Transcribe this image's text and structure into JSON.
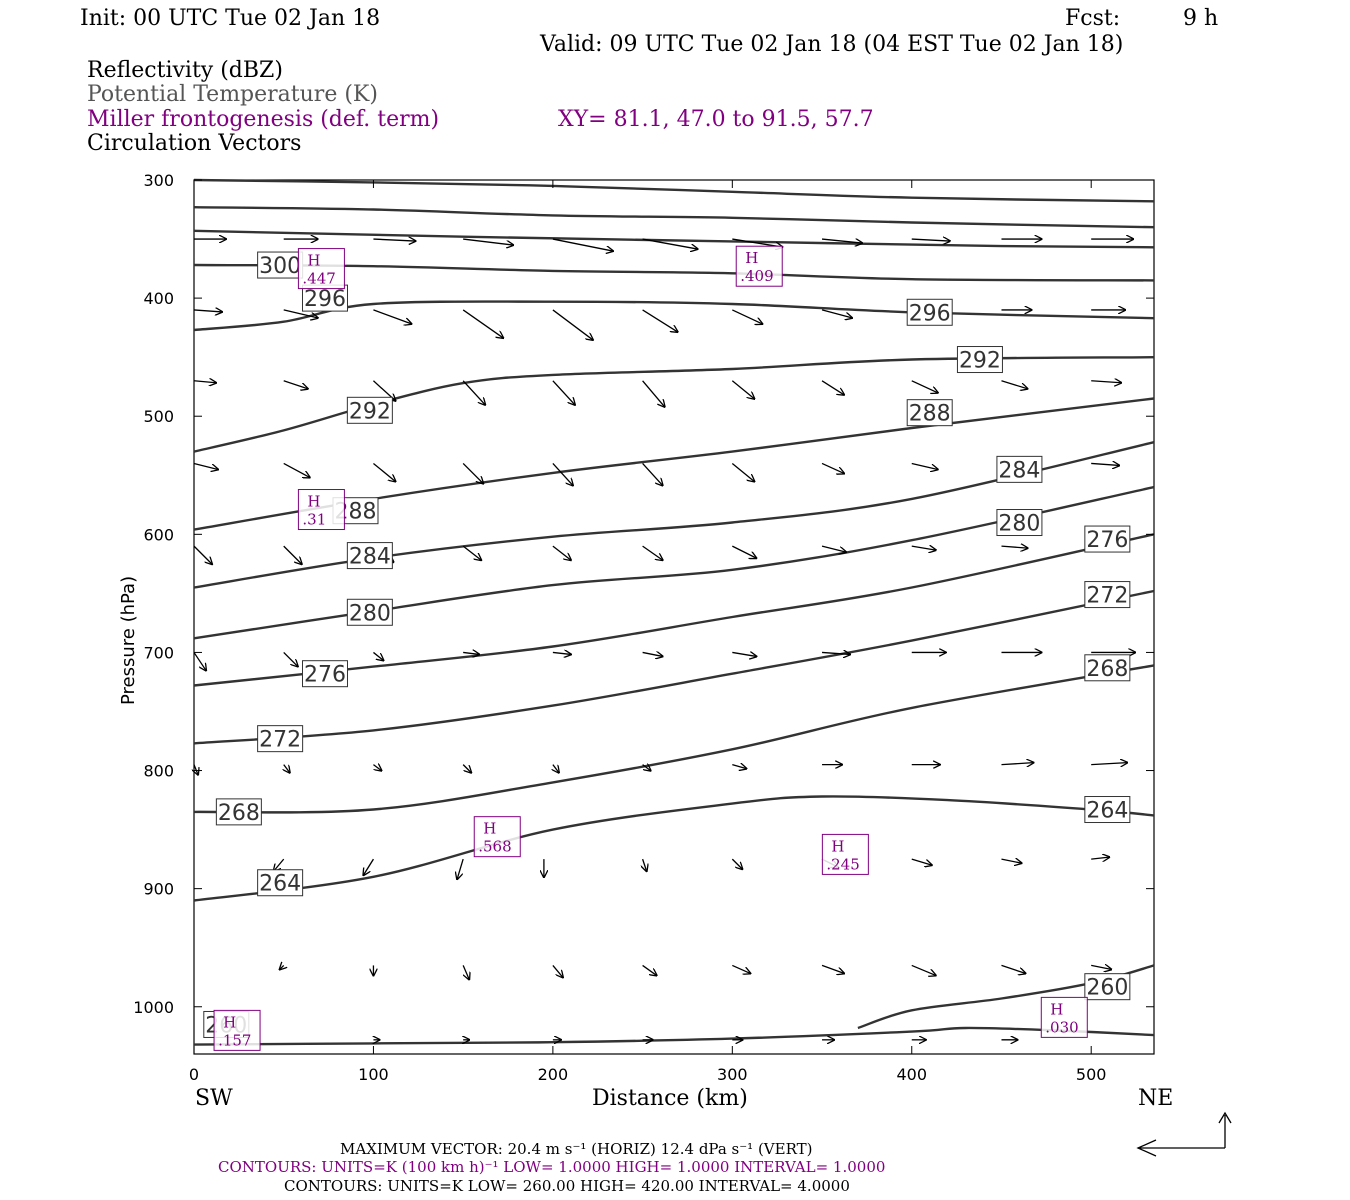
{
  "header": {
    "init": "Init: 00 UTC Tue 02 Jan 18",
    "fcst_label": "Fcst:",
    "fcst_value": "9 h",
    "valid": "Valid: 09 UTC Tue 02 Jan 18 (04 EST Tue 02 Jan 18)",
    "field1": "Reflectivity (dBZ)",
    "field2": "Potential Temperature (K)",
    "field3": "Miller frontogenesis (def. term)",
    "xy": "XY=  81.1, 47.0 to  91.5, 57.7",
    "field4": "Circulation Vectors"
  },
  "colors": {
    "purple": "#800080",
    "gray": "#555555",
    "contour": "#333333"
  },
  "footer": {
    "max_vector": "MAXIMUM VECTOR:  20.4 m s⁻¹ (HORIZ)          12.4 dPa s⁻¹ (VERT)",
    "contours_purple": "CONTOURS:  UNITS=K (100 km h)⁻¹  LOW=   1.0000       HIGH=   1.0000       INTERVAL=    1.0000",
    "contours_black": "CONTOURS:  UNITS=K  LOW=   260.00       HIGH=   420.00       INTERVAL=    4.0000"
  },
  "chart_data": {
    "type": "line",
    "xlabel": "Distance (km)",
    "ylabel": "Pressure (hPa)",
    "x_left_label": "SW",
    "x_right_label": "NE",
    "xlim": [
      0,
      535
    ],
    "ylim": [
      300,
      1040
    ],
    "x_ticks": [
      0,
      100,
      200,
      300,
      400,
      500
    ],
    "y_ticks": [
      300,
      400,
      500,
      600,
      700,
      800,
      900,
      1000
    ],
    "theta_contours": [
      {
        "label": "300",
        "points": [
          [
            0,
            300
          ],
          [
            100,
            302
          ],
          [
            200,
            305
          ],
          [
            300,
            310
          ],
          [
            400,
            315
          ],
          [
            535,
            318
          ]
        ],
        "label_at": [
          48,
          372
        ]
      },
      {
        "label": "",
        "points": [
          [
            0,
            323
          ],
          [
            100,
            325
          ],
          [
            200,
            330
          ],
          [
            300,
            332
          ],
          [
            400,
            336
          ],
          [
            535,
            340
          ]
        ]
      },
      {
        "label": "",
        "points": [
          [
            0,
            343
          ],
          [
            150,
            348
          ],
          [
            300,
            352
          ],
          [
            450,
            356
          ],
          [
            535,
            357
          ]
        ]
      },
      {
        "label": "",
        "points": [
          [
            0,
            372
          ],
          [
            100,
            373
          ],
          [
            200,
            377
          ],
          [
            300,
            379
          ],
          [
            400,
            384
          ],
          [
            535,
            385
          ]
        ]
      },
      {
        "label": "296",
        "points": [
          [
            0,
            427
          ],
          [
            50,
            420
          ],
          [
            100,
            405
          ],
          [
            200,
            403
          ],
          [
            300,
            405
          ],
          [
            400,
            412
          ],
          [
            535,
            417
          ]
        ],
        "label_at": [
          410,
          412
        ]
      },
      {
        "label": "292",
        "points": [
          [
            0,
            530
          ],
          [
            50,
            512
          ],
          [
            100,
            490
          ],
          [
            150,
            472
          ],
          [
            200,
            465
          ],
          [
            300,
            460
          ],
          [
            400,
            452
          ],
          [
            535,
            450
          ]
        ],
        "label_at": [
          98,
          495
        ]
      },
      {
        "label": "288",
        "points": [
          [
            0,
            596
          ],
          [
            100,
            570
          ],
          [
            200,
            548
          ],
          [
            300,
            530
          ],
          [
            400,
            510
          ],
          [
            535,
            485
          ]
        ],
        "label_at": [
          410,
          497
        ]
      },
      {
        "label": "284",
        "points": [
          [
            0,
            645
          ],
          [
            100,
            620
          ],
          [
            200,
            602
          ],
          [
            300,
            590
          ],
          [
            400,
            570
          ],
          [
            535,
            522
          ]
        ],
        "label_at": [
          98,
          618
        ]
      },
      {
        "label": "280",
        "points": [
          [
            0,
            688
          ],
          [
            100,
            665
          ],
          [
            200,
            643
          ],
          [
            300,
            630
          ],
          [
            400,
            605
          ],
          [
            535,
            560
          ]
        ],
        "label_at": [
          98,
          666
        ]
      },
      {
        "label": "276",
        "points": [
          [
            0,
            728
          ],
          [
            100,
            712
          ],
          [
            200,
            695
          ],
          [
            300,
            670
          ],
          [
            400,
            645
          ],
          [
            535,
            600
          ]
        ],
        "label_at": [
          73,
          718
        ]
      },
      {
        "label": "272",
        "points": [
          [
            0,
            777
          ],
          [
            100,
            766
          ],
          [
            200,
            745
          ],
          [
            300,
            718
          ],
          [
            400,
            690
          ],
          [
            535,
            648
          ]
        ],
        "label_at": [
          48,
          773
        ]
      },
      {
        "label": "268",
        "points": [
          [
            0,
            835
          ],
          [
            100,
            833
          ],
          [
            200,
            810
          ],
          [
            300,
            782
          ],
          [
            400,
            747
          ],
          [
            535,
            711
          ]
        ],
        "label_at": [
          25,
          835
        ]
      },
      {
        "label": "264",
        "points": [
          [
            0,
            910
          ],
          [
            100,
            890
          ],
          [
            200,
            850
          ],
          [
            300,
            828
          ],
          [
            350,
            822
          ],
          [
            420,
            825
          ],
          [
            500,
            833
          ],
          [
            535,
            838
          ]
        ],
        "label_at": [
          48,
          895
        ]
      },
      {
        "label": "260",
        "points": [
          [
            370,
            1018
          ],
          [
            400,
            1003
          ],
          [
            450,
            993
          ],
          [
            500,
            980
          ],
          [
            535,
            965
          ]
        ],
        "label_at": [
          509,
          983
        ]
      },
      {
        "label": "",
        "points": [
          [
            0,
            1032
          ],
          [
            100,
            1031
          ],
          [
            200,
            1030
          ],
          [
            300,
            1027
          ],
          [
            400,
            1021
          ],
          [
            430,
            1018
          ],
          [
            480,
            1020
          ],
          [
            535,
            1024
          ]
        ]
      }
    ],
    "theta_extra_labels": [
      {
        "label": "296",
        "at": [
          73,
          400
        ]
      },
      {
        "label": "292",
        "at": [
          438,
          452
        ]
      },
      {
        "label": "288",
        "at": [
          90,
          580
        ]
      },
      {
        "label": "284",
        "at": [
          460,
          545
        ]
      },
      {
        "label": "280",
        "at": [
          460,
          590
        ]
      },
      {
        "label": "276",
        "at": [
          509,
          604
        ]
      },
      {
        "label": "272",
        "at": [
          509,
          651
        ]
      },
      {
        "label": "268",
        "at": [
          509,
          713
        ]
      },
      {
        "label": "264",
        "at": [
          509,
          833
        ]
      },
      {
        "label": "260",
        "at": [
          18,
          1015
        ]
      }
    ],
    "frontogenesis_highs": [
      {
        "label": "H",
        "value": ".447",
        "at": [
          71,
          375
        ]
      },
      {
        "label": "H",
        "value": ".409",
        "at": [
          315,
          373
        ]
      },
      {
        "label": "H",
        "value": ".31",
        "at": [
          71,
          579
        ]
      },
      {
        "label": "H",
        "value": ".568",
        "at": [
          169,
          856
        ]
      },
      {
        "label": "H",
        "value": ".245",
        "at": [
          363,
          871
        ]
      },
      {
        "label": "H",
        "value": ".157",
        "at": [
          24,
          1020
        ]
      },
      {
        "label": "H",
        "value": ".030",
        "at": [
          485,
          1009
        ]
      }
    ],
    "vectors": [
      {
        "x": 0,
        "p": 350,
        "u": 32,
        "v": 0
      },
      {
        "x": 50,
        "p": 350,
        "u": 34,
        "v": 0
      },
      {
        "x": 100,
        "p": 350,
        "u": 42,
        "v": 2
      },
      {
        "x": 150,
        "p": 350,
        "u": 50,
        "v": 6
      },
      {
        "x": 200,
        "p": 350,
        "u": 60,
        "v": 12
      },
      {
        "x": 250,
        "p": 350,
        "u": 55,
        "v": 10
      },
      {
        "x": 300,
        "p": 350,
        "u": 50,
        "v": 8
      },
      {
        "x": 350,
        "p": 350,
        "u": 40,
        "v": 4
      },
      {
        "x": 400,
        "p": 350,
        "u": 38,
        "v": 2
      },
      {
        "x": 450,
        "p": 350,
        "u": 40,
        "v": 0
      },
      {
        "x": 500,
        "p": 350,
        "u": 42,
        "v": 0
      },
      {
        "x": 0,
        "p": 410,
        "u": 28,
        "v": 2
      },
      {
        "x": 50,
        "p": 410,
        "u": 34,
        "v": 8
      },
      {
        "x": 100,
        "p": 410,
        "u": 38,
        "v": 14
      },
      {
        "x": 150,
        "p": 410,
        "u": 40,
        "v": 28
      },
      {
        "x": 200,
        "p": 410,
        "u": 40,
        "v": 30
      },
      {
        "x": 250,
        "p": 410,
        "u": 35,
        "v": 22
      },
      {
        "x": 300,
        "p": 410,
        "u": 30,
        "v": 14
      },
      {
        "x": 350,
        "p": 410,
        "u": 30,
        "v": 8
      },
      {
        "x": 400,
        "p": 410,
        "u": 30,
        "v": 6
      },
      {
        "x": 450,
        "p": 410,
        "u": 30,
        "v": 0
      },
      {
        "x": 500,
        "p": 410,
        "u": 34,
        "v": 0
      },
      {
        "x": 0,
        "p": 470,
        "u": 22,
        "v": 2
      },
      {
        "x": 50,
        "p": 470,
        "u": 24,
        "v": 8
      },
      {
        "x": 100,
        "p": 470,
        "u": 22,
        "v": 20
      },
      {
        "x": 150,
        "p": 470,
        "u": 22,
        "v": 24
      },
      {
        "x": 200,
        "p": 470,
        "u": 22,
        "v": 24
      },
      {
        "x": 250,
        "p": 470,
        "u": 22,
        "v": 26
      },
      {
        "x": 300,
        "p": 470,
        "u": 22,
        "v": 18
      },
      {
        "x": 350,
        "p": 470,
        "u": 22,
        "v": 14
      },
      {
        "x": 400,
        "p": 470,
        "u": 26,
        "v": 12
      },
      {
        "x": 450,
        "p": 470,
        "u": 26,
        "v": 8
      },
      {
        "x": 500,
        "p": 470,
        "u": 30,
        "v": 2
      },
      {
        "x": 0,
        "p": 540,
        "u": 24,
        "v": 6
      },
      {
        "x": 50,
        "p": 540,
        "u": 26,
        "v": 14
      },
      {
        "x": 100,
        "p": 540,
        "u": 22,
        "v": 18
      },
      {
        "x": 150,
        "p": 540,
        "u": 20,
        "v": 20
      },
      {
        "x": 200,
        "p": 540,
        "u": 20,
        "v": 22
      },
      {
        "x": 250,
        "p": 540,
        "u": 20,
        "v": 22
      },
      {
        "x": 300,
        "p": 540,
        "u": 22,
        "v": 18
      },
      {
        "x": 350,
        "p": 540,
        "u": 22,
        "v": 10
      },
      {
        "x": 400,
        "p": 540,
        "u": 26,
        "v": 6
      },
      {
        "x": 450,
        "p": 540,
        "u": 26,
        "v": 2
      },
      {
        "x": 500,
        "p": 540,
        "u": 28,
        "v": 2
      },
      {
        "x": 0,
        "p": 610,
        "u": 18,
        "v": 18
      },
      {
        "x": 50,
        "p": 610,
        "u": 18,
        "v": 18
      },
      {
        "x": 100,
        "p": 610,
        "u": 20,
        "v": 16
      },
      {
        "x": 150,
        "p": 610,
        "u": 18,
        "v": 14
      },
      {
        "x": 200,
        "p": 610,
        "u": 18,
        "v": 14
      },
      {
        "x": 250,
        "p": 610,
        "u": 20,
        "v": 14
      },
      {
        "x": 300,
        "p": 610,
        "u": 24,
        "v": 12
      },
      {
        "x": 350,
        "p": 610,
        "u": 24,
        "v": 6
      },
      {
        "x": 400,
        "p": 610,
        "u": 24,
        "v": 4
      },
      {
        "x": 450,
        "p": 610,
        "u": 26,
        "v": 2
      },
      {
        "x": 500,
        "p": 610,
        "u": 28,
        "v": 0
      },
      {
        "x": 0,
        "p": 700,
        "u": 12,
        "v": 18
      },
      {
        "x": 50,
        "p": 700,
        "u": 14,
        "v": 14
      },
      {
        "x": 100,
        "p": 700,
        "u": 10,
        "v": 8
      },
      {
        "x": 150,
        "p": 700,
        "u": 16,
        "v": 2
      },
      {
        "x": 200,
        "p": 700,
        "u": 18,
        "v": 2
      },
      {
        "x": 250,
        "p": 700,
        "u": 20,
        "v": 4
      },
      {
        "x": 300,
        "p": 700,
        "u": 24,
        "v": 4
      },
      {
        "x": 350,
        "p": 700,
        "u": 28,
        "v": 2
      },
      {
        "x": 400,
        "p": 700,
        "u": 34,
        "v": 0
      },
      {
        "x": 450,
        "p": 700,
        "u": 40,
        "v": 0
      },
      {
        "x": 500,
        "p": 700,
        "u": 44,
        "v": 0
      },
      {
        "x": 0,
        "p": 795,
        "u": 4,
        "v": 10
      },
      {
        "x": 50,
        "p": 795,
        "u": 6,
        "v": 8
      },
      {
        "x": 100,
        "p": 795,
        "u": 8,
        "v": 6
      },
      {
        "x": 150,
        "p": 795,
        "u": 8,
        "v": 8
      },
      {
        "x": 200,
        "p": 795,
        "u": 6,
        "v": 8
      },
      {
        "x": 250,
        "p": 795,
        "u": 8,
        "v": 6
      },
      {
        "x": 300,
        "p": 795,
        "u": 14,
        "v": 4
      },
      {
        "x": 350,
        "p": 795,
        "u": 20,
        "v": 0
      },
      {
        "x": 400,
        "p": 795,
        "u": 28,
        "v": 0
      },
      {
        "x": 450,
        "p": 795,
        "u": 32,
        "v": -2
      },
      {
        "x": 500,
        "p": 795,
        "u": 36,
        "v": -2
      },
      {
        "x": 50,
        "p": 875,
        "u": -10,
        "v": 12
      },
      {
        "x": 100,
        "p": 875,
        "u": -10,
        "v": 16
      },
      {
        "x": 150,
        "p": 875,
        "u": -6,
        "v": 20
      },
      {
        "x": 195,
        "p": 875,
        "u": 0,
        "v": 18
      },
      {
        "x": 250,
        "p": 875,
        "u": 4,
        "v": 12
      },
      {
        "x": 300,
        "p": 875,
        "u": 10,
        "v": 10
      },
      {
        "x": 350,
        "p": 875,
        "u": 16,
        "v": 8
      },
      {
        "x": 400,
        "p": 875,
        "u": 20,
        "v": 6
      },
      {
        "x": 450,
        "p": 875,
        "u": 20,
        "v": 4
      },
      {
        "x": 500,
        "p": 875,
        "u": 18,
        "v": -2
      },
      {
        "x": 50,
        "p": 965,
        "u": -4,
        "v": 4
      },
      {
        "x": 100,
        "p": 965,
        "u": 0,
        "v": 10
      },
      {
        "x": 150,
        "p": 965,
        "u": 6,
        "v": 14
      },
      {
        "x": 200,
        "p": 965,
        "u": 10,
        "v": 12
      },
      {
        "x": 250,
        "p": 965,
        "u": 14,
        "v": 10
      },
      {
        "x": 300,
        "p": 965,
        "u": 18,
        "v": 8
      },
      {
        "x": 350,
        "p": 965,
        "u": 22,
        "v": 8
      },
      {
        "x": 400,
        "p": 965,
        "u": 24,
        "v": 10
      },
      {
        "x": 450,
        "p": 965,
        "u": 24,
        "v": 8
      },
      {
        "x": 500,
        "p": 965,
        "u": 20,
        "v": 4
      },
      {
        "x": 100,
        "p": 1028,
        "u": 6,
        "v": 0
      },
      {
        "x": 150,
        "p": 1028,
        "u": 6,
        "v": 0
      },
      {
        "x": 200,
        "p": 1028,
        "u": 8,
        "v": 0
      },
      {
        "x": 250,
        "p": 1028,
        "u": 10,
        "v": 0
      },
      {
        "x": 300,
        "p": 1028,
        "u": 10,
        "v": 0
      },
      {
        "x": 350,
        "p": 1028,
        "u": 12,
        "v": 0
      },
      {
        "x": 400,
        "p": 1028,
        "u": 14,
        "v": 0
      },
      {
        "x": 450,
        "p": 1028,
        "u": 16,
        "v": 0
      }
    ]
  }
}
